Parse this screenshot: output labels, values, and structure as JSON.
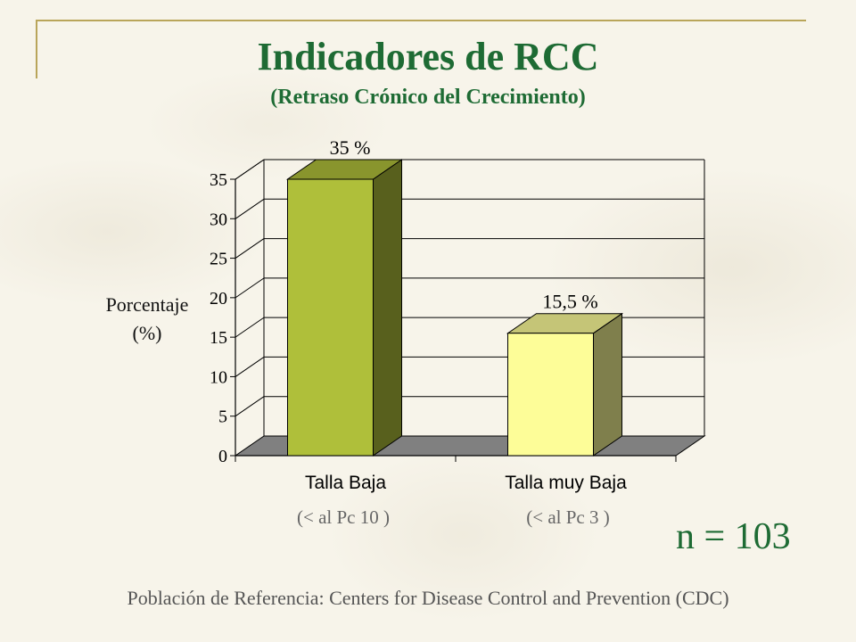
{
  "title": "Indicadores de RCC",
  "subtitle": "(Retraso Crónico del Crecimiento)",
  "ylabel_lines": [
    "Porcentaje",
    "(%)"
  ],
  "category_subtitles": [
    "(< al Pc 10 )",
    "(< al Pc 3 )"
  ],
  "sample_size": "n = 103",
  "footer": "Población de Referencia:  Centers for Disease Control and Prevention (CDC)",
  "colors": {
    "title": "#1e6b34",
    "bar1_front": "#afbf3a",
    "bar2_front": "#fdfd98",
    "floor": "#808080"
  },
  "chart_data": {
    "type": "bar",
    "categories": [
      "Talla Baja",
      "Talla muy Baja"
    ],
    "values": [
      35,
      15.5
    ],
    "data_labels": [
      "35 %",
      "15,5 %"
    ],
    "ylabel": "Porcentaje (%)",
    "ylim": [
      0,
      35
    ],
    "yticks": [
      0,
      5,
      10,
      15,
      20,
      25,
      30,
      35
    ],
    "grid": true,
    "three_d": true
  }
}
